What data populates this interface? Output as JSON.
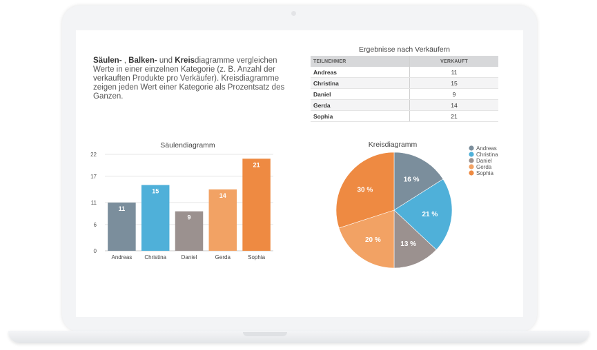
{
  "intro": {
    "bold1": "Säulen-",
    "sep1": " , ",
    "bold2": "Balken-",
    "sep2": " und ",
    "bold3": "Kreis",
    "rest": "diagramme vergleichen Werte in einer einzelnen Kategorie (z. B. Anzahl der verkauften Produkte pro Verkäufer). Kreisdiagramme zeigen jeden Wert einer Kategorie als Prozentsatz des Ganzen."
  },
  "table": {
    "title": "Ergebnisse nach Verkäufern",
    "headers": [
      "TEILNEHMER",
      "VERKAUFT"
    ],
    "rows": [
      [
        "Andreas",
        "11"
      ],
      [
        "Christina",
        "15"
      ],
      [
        "Daniel",
        "9"
      ],
      [
        "Gerda",
        "14"
      ],
      [
        "Sophia",
        "21"
      ]
    ]
  },
  "chart_data": [
    {
      "type": "bar",
      "title": "Säulendiagramm",
      "categories": [
        "Andreas",
        "Christina",
        "Daniel",
        "Gerda",
        "Sophia"
      ],
      "values": [
        11,
        15,
        9,
        14,
        21
      ],
      "yticks": [
        0,
        6,
        11,
        17,
        22
      ],
      "ylim": [
        0,
        22
      ],
      "grid": true,
      "colors": [
        "#7b8e9c",
        "#4fb0d9",
        "#9b918f",
        "#f2a264",
        "#ee8a42"
      ]
    },
    {
      "type": "pie",
      "title": "Kreisdiagramm",
      "labels": [
        "Andreas",
        "Christina",
        "Daniel",
        "Gerda",
        "Sophia"
      ],
      "percent_labels": [
        "16 %",
        "21 %",
        "13 %",
        "20 %",
        "30 %"
      ],
      "values": [
        16,
        21,
        13,
        20,
        30
      ],
      "legend": "right",
      "colors": [
        "#7b8e9c",
        "#4fb0d9",
        "#9b918f",
        "#f2a264",
        "#ee8a42"
      ]
    }
  ]
}
